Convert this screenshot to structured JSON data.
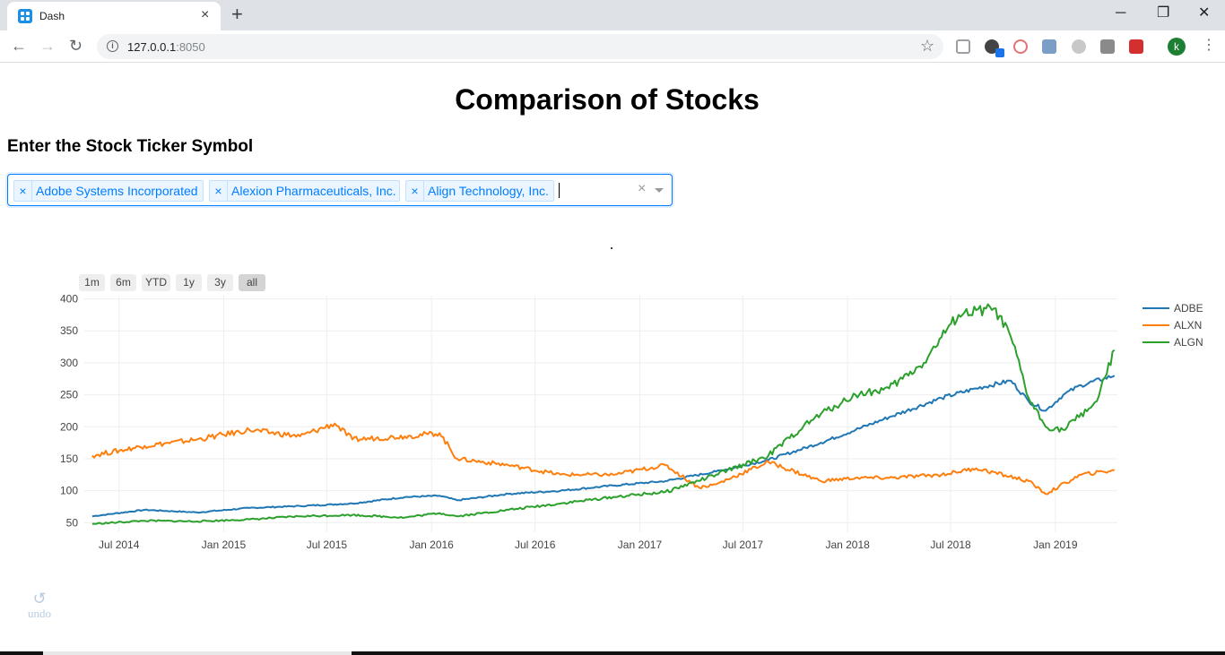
{
  "browser": {
    "tab_title": "Dash",
    "tab_close": "×",
    "new_tab": "+",
    "url_host": "127.0.0.1",
    "url_port": ":8050",
    "profile_initial": "k",
    "window_controls": {
      "minimize": "─",
      "restore": "❐",
      "close": "✕"
    },
    "nav": {
      "back": "←",
      "forward": "→",
      "reload": "↻"
    }
  },
  "page": {
    "title": "Comparison of Stocks",
    "subheading": "Enter the Stock Ticker Symbol",
    "dropdown": {
      "selected": [
        {
          "remove": "×",
          "label": "Adobe Systems Incorporated"
        },
        {
          "remove": "×",
          "label": "Alexion Pharmaceuticals, Inc."
        },
        {
          "remove": "×",
          "label": "Align Technology, Inc."
        }
      ],
      "clear": "×"
    },
    "range_selector": [
      "1m",
      "6m",
      "YTD",
      "1y",
      "3y",
      "all"
    ],
    "range_selector_active": "all",
    "undo": {
      "icon": "↺",
      "label": "undo"
    }
  },
  "colors": {
    "ADBE": "#1f77b4",
    "ALXN": "#ff7f0e",
    "ALGN": "#2ca02c",
    "accent": "#007eff"
  },
  "chart_data": {
    "type": "line",
    "x_ticks": [
      "Jul 2014",
      "Jan 2015",
      "Jul 2015",
      "Jan 2016",
      "Jul 2016",
      "Jan 2017",
      "Jul 2017",
      "Jan 2018",
      "Jul 2018",
      "Jan 2019"
    ],
    "y_ticks": [
      50,
      100,
      150,
      200,
      250,
      300,
      350,
      400
    ],
    "xlim": [
      "2014-05-01",
      "2019-04-20"
    ],
    "ylim": [
      35,
      405
    ],
    "grid": true,
    "legend_position": "top-right",
    "series": [
      {
        "name": "ADBE",
        "x": [
          "2014-05",
          "2014-08",
          "2014-11",
          "2015-02",
          "2015-05",
          "2015-08",
          "2015-11",
          "2016-01",
          "2016-02",
          "2016-05",
          "2016-08",
          "2016-11",
          "2017-02",
          "2017-05",
          "2017-08",
          "2017-11",
          "2018-01",
          "2018-03",
          "2018-06",
          "2018-08",
          "2018-10",
          "2018-11",
          "2018-12",
          "2019-01",
          "2019-02",
          "2019-04"
        ],
        "values": [
          60,
          70,
          66,
          73,
          76,
          80,
          90,
          92,
          85,
          95,
          100,
          108,
          115,
          130,
          148,
          175,
          195,
          215,
          245,
          260,
          272,
          240,
          225,
          250,
          265,
          280
        ]
      },
      {
        "name": "ALXN",
        "x": [
          "2014-05",
          "2014-08",
          "2014-11",
          "2015-02",
          "2015-05",
          "2015-07",
          "2015-08",
          "2015-11",
          "2016-01",
          "2016-02",
          "2016-05",
          "2016-08",
          "2016-11",
          "2017-02",
          "2017-04",
          "2017-05",
          "2017-08",
          "2017-11",
          "2018-01",
          "2018-03",
          "2018-06",
          "2018-08",
          "2018-11",
          "2018-12",
          "2019-02",
          "2019-04"
        ],
        "values": [
          155,
          170,
          180,
          195,
          185,
          205,
          180,
          185,
          190,
          150,
          140,
          125,
          125,
          140,
          105,
          110,
          145,
          115,
          120,
          120,
          125,
          135,
          115,
          95,
          125,
          132
        ]
      },
      {
        "name": "ALGN",
        "x": [
          "2014-05",
          "2014-08",
          "2014-11",
          "2015-02",
          "2015-05",
          "2015-08",
          "2015-11",
          "2016-01",
          "2016-02",
          "2016-05",
          "2016-08",
          "2016-11",
          "2017-02",
          "2017-05",
          "2017-08",
          "2017-10",
          "2017-11",
          "2018-01",
          "2018-03",
          "2018-05",
          "2018-06",
          "2018-07",
          "2018-09",
          "2018-10",
          "2018-11",
          "2018-12",
          "2019-01",
          "2019-03",
          "2019-04"
        ],
        "values": [
          48,
          53,
          52,
          55,
          60,
          62,
          58,
          65,
          60,
          70,
          80,
          90,
          98,
          125,
          155,
          200,
          220,
          250,
          260,
          300,
          340,
          375,
          385,
          340,
          245,
          200,
          195,
          240,
          320
        ]
      }
    ]
  }
}
